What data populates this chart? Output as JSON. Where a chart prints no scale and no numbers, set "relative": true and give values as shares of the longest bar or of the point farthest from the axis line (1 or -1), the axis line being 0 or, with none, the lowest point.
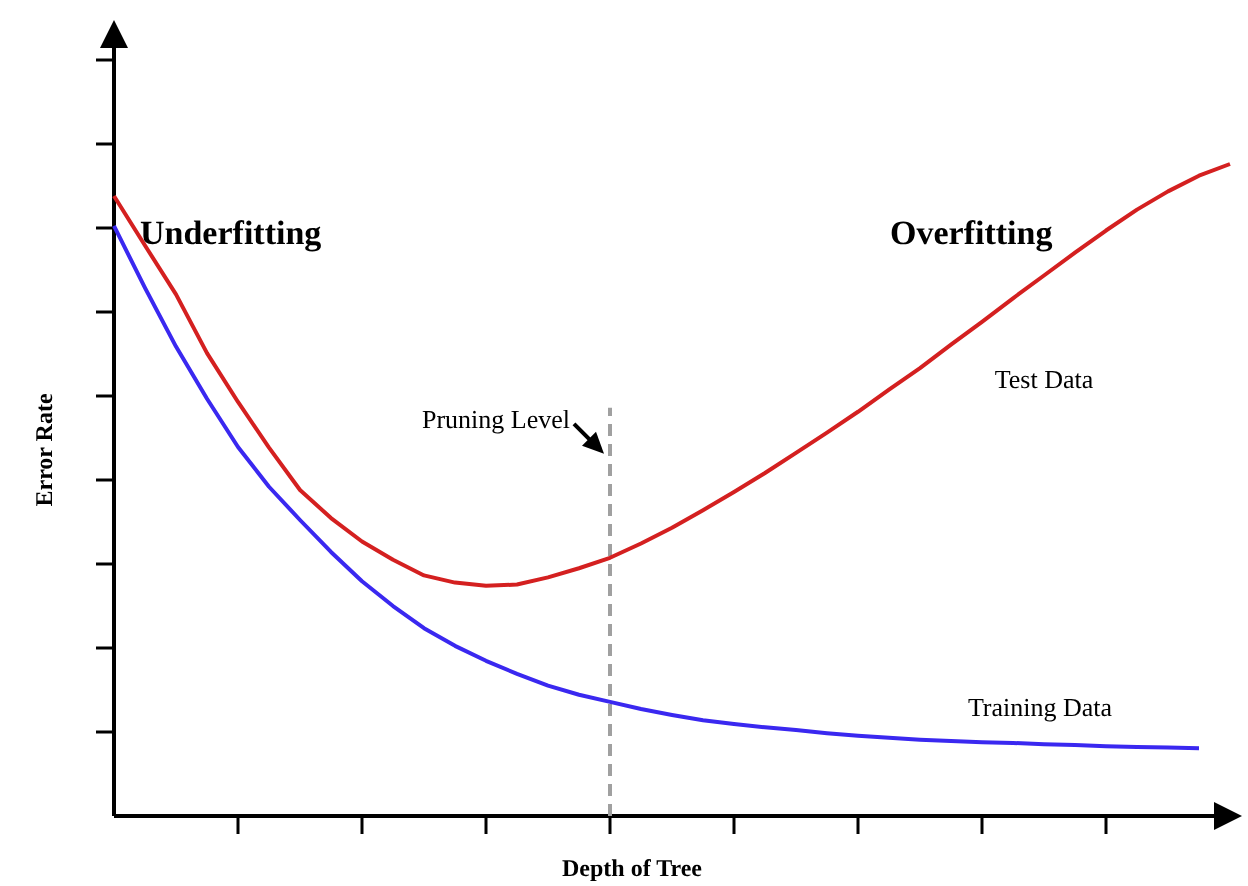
{
  "chart_data": {
    "type": "line",
    "relative": true,
    "xlabel": "Depth of Tree",
    "ylabel": "Error Rate",
    "grid": false,
    "marker": "none",
    "line_style": "solid",
    "categories": [
      null,
      null,
      null,
      null,
      null,
      null,
      null,
      null,
      null,
      null,
      null,
      null,
      null,
      null,
      null,
      null,
      null,
      null,
      null,
      null,
      null,
      null,
      null,
      null,
      null,
      null,
      null,
      null,
      null,
      null,
      null,
      null,
      null,
      null,
      null,
      null,
      null
    ],
    "series": [
      {
        "color": "#d42020",
        "values": [
          0.951,
          0.875,
          0.8,
          0.71,
          0.635,
          0.565,
          0.5,
          0.457,
          0.421,
          0.393,
          0.369,
          0.358,
          0.353,
          0.355,
          0.366,
          0.38,
          0.396,
          0.418,
          0.442,
          0.469,
          0.497,
          0.526,
          0.557,
          0.588,
          0.62,
          0.654,
          0.687,
          0.723,
          0.758,
          0.794,
          0.829,
          0.864,
          0.898,
          0.93,
          0.958,
          0.982,
          1.0
        ]
      },
      {
        "color": "#3a28f0",
        "values": [
          0.905,
          0.81,
          0.72,
          0.64,
          0.566,
          0.505,
          0.454,
          0.405,
          0.36,
          0.322,
          0.288,
          0.261,
          0.238,
          0.218,
          0.2,
          0.186,
          0.175,
          0.164,
          0.155,
          0.147,
          0.141,
          0.136,
          0.132,
          0.127,
          0.123,
          0.12,
          0.117,
          0.115,
          0.113,
          0.112,
          0.11,
          0.109,
          0.107,
          0.106,
          0.105,
          0.104,
          null
        ]
      }
    ],
    "annotations": [
      "Underfitting",
      "Overfitting",
      "Test Data",
      "Training Data",
      "Pruning Level"
    ]
  }
}
